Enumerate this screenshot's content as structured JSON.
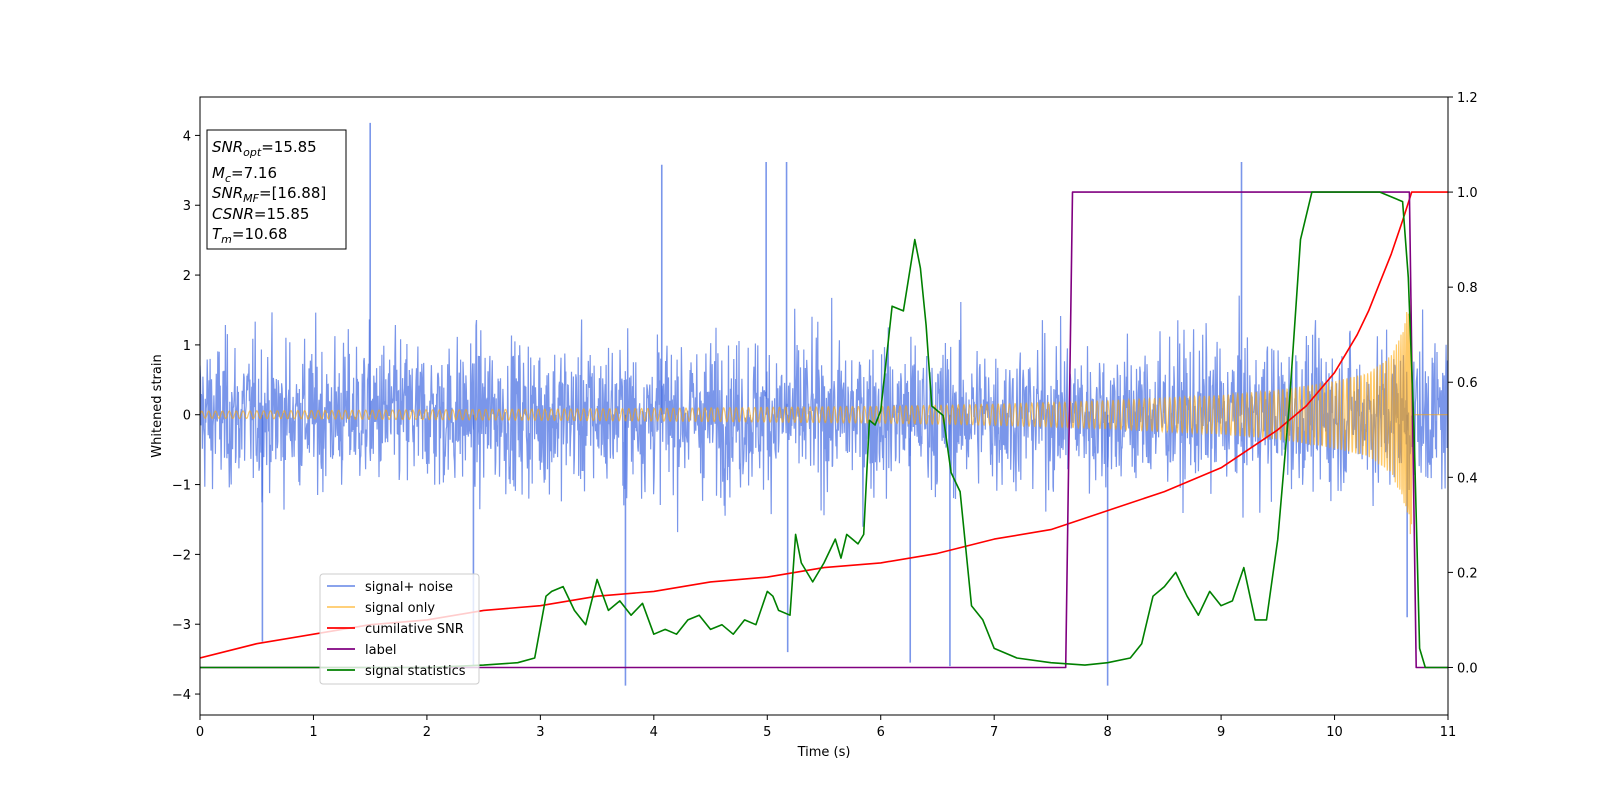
{
  "chart_data": {
    "type": "line",
    "xlabel": "Time (s)",
    "ylabel": "Whitened strain",
    "xlim": [
      0,
      11
    ],
    "ylim": [
      -4.3,
      4.55
    ],
    "y2lim": [
      -0.1,
      1.2
    ],
    "xticks": [
      0,
      1,
      2,
      3,
      4,
      5,
      6,
      7,
      8,
      9,
      10,
      11
    ],
    "yticks": [
      -4,
      -3,
      -2,
      -1,
      0,
      1,
      2,
      3,
      4
    ],
    "y2ticks": [
      "0.0",
      "0.2",
      "0.4",
      "0.6",
      "0.8",
      "1.0",
      "1.2"
    ],
    "grid": false,
    "legend_position": "lower-left",
    "series": [
      {
        "name": "signal+ noise",
        "axis": "left",
        "color": "#4169e1",
        "opacity": 0.7,
        "kind": "noise-band",
        "std": 0.75,
        "spikes": [
          [
            1.5,
            4.18
          ],
          [
            3.75,
            -3.88
          ],
          [
            9.18,
            3.62
          ],
          [
            4.07,
            3.58
          ],
          [
            5.17,
            3.62
          ],
          [
            4.99,
            3.62
          ],
          [
            8.0,
            -3.88
          ],
          [
            6.61,
            -3.6
          ],
          [
            6.26,
            -3.55
          ],
          [
            2.41,
            -3.6
          ],
          [
            0.55,
            -3.25
          ],
          [
            5.18,
            -3.4
          ],
          [
            10.64,
            -2.9
          ]
        ]
      },
      {
        "name": "signal only",
        "axis": "left",
        "color": "#ffa500",
        "opacity": 0.6,
        "kind": "chirp-envelope",
        "t_merge": 10.68,
        "amp_points": [
          [
            0,
            0.05
          ],
          [
            2,
            0.07
          ],
          [
            4,
            0.09
          ],
          [
            6,
            0.12
          ],
          [
            7,
            0.15
          ],
          [
            8,
            0.2
          ],
          [
            9,
            0.28
          ],
          [
            9.5,
            0.35
          ],
          [
            10,
            0.48
          ],
          [
            10.3,
            0.6
          ],
          [
            10.5,
            0.85
          ],
          [
            10.6,
            1.2
          ],
          [
            10.68,
            1.8
          ]
        ]
      },
      {
        "name": "cumilative SNR",
        "axis": "right",
        "color": "#ff0000",
        "x": [
          0,
          0.5,
          1,
          1.5,
          2,
          2.5,
          3,
          3.5,
          4,
          4.5,
          5,
          5.5,
          6,
          6.5,
          7,
          7.5,
          8,
          8.5,
          9,
          9.25,
          9.5,
          9.75,
          10,
          10.1,
          10.2,
          10.3,
          10.4,
          10.5,
          10.6,
          10.68,
          11
        ],
        "y": [
          0.02,
          0.05,
          0.07,
          0.09,
          0.1,
          0.12,
          0.13,
          0.15,
          0.16,
          0.18,
          0.19,
          0.21,
          0.22,
          0.24,
          0.27,
          0.29,
          0.33,
          0.37,
          0.42,
          0.46,
          0.5,
          0.55,
          0.62,
          0.66,
          0.7,
          0.75,
          0.81,
          0.87,
          0.94,
          1.0,
          1.0
        ]
      },
      {
        "name": "label",
        "axis": "right",
        "color": "#800080",
        "x": [
          0,
          7.63,
          7.69,
          10.66,
          10.72,
          11
        ],
        "y": [
          0.0,
          0.0,
          1.0,
          1.0,
          0.0,
          0.0
        ]
      },
      {
        "name": "signal statistics",
        "axis": "right",
        "color": "#008000",
        "x": [
          0,
          1,
          2,
          2.5,
          2.8,
          2.95,
          3.05,
          3.1,
          3.2,
          3.3,
          3.4,
          3.5,
          3.6,
          3.7,
          3.8,
          3.9,
          4.0,
          4.1,
          4.2,
          4.3,
          4.4,
          4.5,
          4.6,
          4.7,
          4.8,
          4.9,
          5.0,
          5.05,
          5.1,
          5.2,
          5.25,
          5.3,
          5.4,
          5.5,
          5.6,
          5.65,
          5.7,
          5.8,
          5.85,
          5.9,
          5.95,
          6.0,
          6.1,
          6.2,
          6.3,
          6.35,
          6.4,
          6.45,
          6.55,
          6.62,
          6.7,
          6.8,
          6.9,
          7.0,
          7.2,
          7.5,
          7.8,
          8.0,
          8.2,
          8.3,
          8.4,
          8.5,
          8.6,
          8.7,
          8.8,
          8.9,
          9.0,
          9.1,
          9.2,
          9.3,
          9.4,
          9.5,
          9.6,
          9.7,
          9.8,
          9.9,
          10.0,
          10.2,
          10.4,
          10.6,
          10.65,
          10.7,
          10.75,
          10.8,
          11
        ],
        "y": [
          0.0,
          0.0,
          0.0,
          0.005,
          0.01,
          0.02,
          0.15,
          0.16,
          0.17,
          0.12,
          0.09,
          0.185,
          0.12,
          0.14,
          0.11,
          0.135,
          0.07,
          0.08,
          0.07,
          0.1,
          0.11,
          0.08,
          0.09,
          0.07,
          0.1,
          0.09,
          0.16,
          0.15,
          0.12,
          0.11,
          0.28,
          0.22,
          0.18,
          0.22,
          0.27,
          0.23,
          0.28,
          0.26,
          0.28,
          0.52,
          0.51,
          0.54,
          0.76,
          0.75,
          0.9,
          0.84,
          0.72,
          0.55,
          0.53,
          0.41,
          0.37,
          0.13,
          0.1,
          0.04,
          0.02,
          0.01,
          0.005,
          0.01,
          0.02,
          0.05,
          0.15,
          0.17,
          0.2,
          0.15,
          0.11,
          0.16,
          0.13,
          0.14,
          0.21,
          0.1,
          0.1,
          0.27,
          0.55,
          0.9,
          1.0,
          1.0,
          1.0,
          1.0,
          1.0,
          0.98,
          0.82,
          0.5,
          0.04,
          0.0,
          0.0
        ]
      }
    ],
    "annotation": {
      "lines": [
        {
          "sym": "SNR",
          "sub": "opt",
          "value": "=15.85"
        },
        {
          "sym": "M",
          "sub": "c",
          "value": "=7.16"
        },
        {
          "sym": "SNR",
          "sub": "MF",
          "value": "=[16.88]"
        },
        {
          "sym": "CSNR",
          "sub": "",
          "value": "=15.85"
        },
        {
          "sym": "T",
          "sub": "m",
          "value": "=10.68"
        }
      ]
    }
  }
}
